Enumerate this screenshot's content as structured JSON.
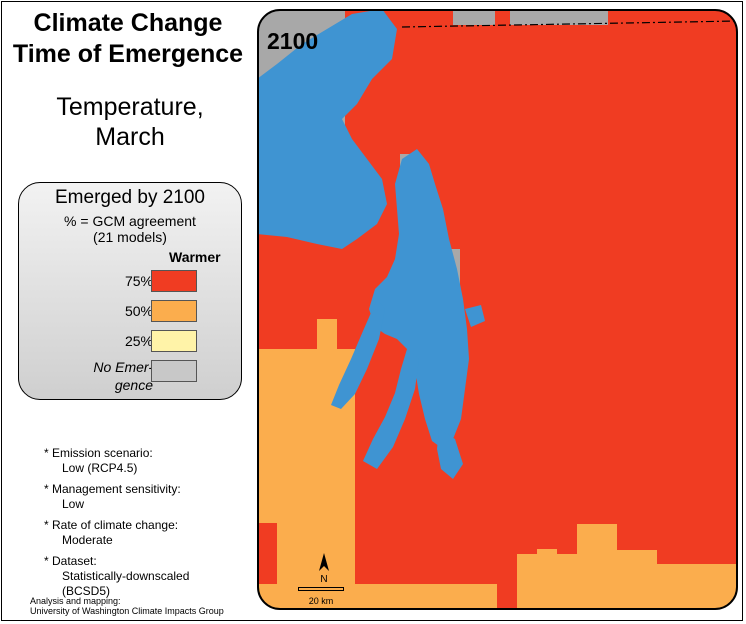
{
  "title": [
    "Climate Change",
    "Time of Emergence"
  ],
  "subtitle": [
    "Temperature,",
    "March"
  ],
  "legend": {
    "title": "Emerged by 2100",
    "subtitle": [
      "% = GCM agreement",
      "(21 models)"
    ],
    "column_header": "Warmer",
    "items": [
      {
        "label": "75%",
        "color": "#f03c22"
      },
      {
        "label": "50%",
        "color": "#fbad4d"
      },
      {
        "label": "25%",
        "color": "#fff3a8"
      },
      {
        "label": [
          "No Emer-",
          "gence"
        ],
        "color": "#c8c8c8",
        "italic": true
      }
    ]
  },
  "notes": [
    {
      "label": "* Emission scenario:",
      "value": [
        "Low (RCP4.5)"
      ]
    },
    {
      "label": "* Management sensitivity:",
      "value": [
        "Low"
      ]
    },
    {
      "label": "* Rate of climate change:",
      "value": [
        "Moderate"
      ]
    },
    {
      "label": "* Dataset:",
      "value": [
        "Statistically-downscaled",
        "(BCSD5)"
      ]
    }
  ],
  "credit": [
    "Analysis and mapping:",
    "University of Washington Climate Impacts Group"
  ],
  "map": {
    "year": "2100",
    "north_label": "N",
    "scale_label": "20 km",
    "colors": {
      "emerged_75": "#f03c22",
      "emerged_50": "#fbad4d",
      "no_emergence": "#a8a8a8",
      "water": "#3f94d2"
    }
  }
}
